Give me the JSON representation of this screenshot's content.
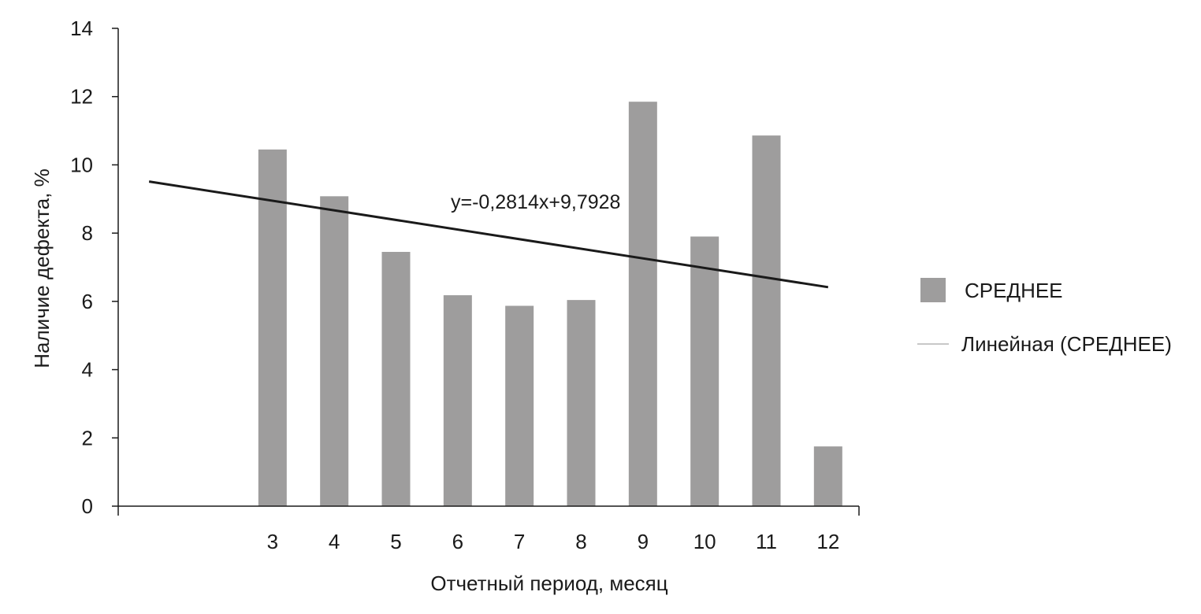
{
  "chart_data": {
    "type": "bar",
    "categories": [
      "3",
      "4",
      "5",
      "6",
      "7",
      "8",
      "9",
      "10",
      "11",
      "12"
    ],
    "series": [
      {
        "name": "СРЕДНЕЕ",
        "values": [
          10.45,
          9.08,
          7.45,
          6.18,
          5.87,
          6.04,
          11.85,
          7.9,
          10.86,
          1.75
        ],
        "color": "#9e9d9d"
      }
    ],
    "trendline": {
      "name": "Линейная (СРЕДНЕЕ)",
      "equation": "y=-0,2814x+9,7928",
      "slope": -0.2814,
      "intercept": 9.7928,
      "color": "#1a1a1a",
      "legend_color": "#c8c8c8"
    },
    "title": "",
    "xlabel": "Отчетный период, месяц",
    "ylabel": "Наличие дефекта, %",
    "ylim": [
      0,
      14
    ],
    "yticks": [
      "0",
      "2",
      "4",
      "6",
      "8",
      "10",
      "12",
      "14"
    ],
    "grid": false,
    "legend_position": "right"
  }
}
